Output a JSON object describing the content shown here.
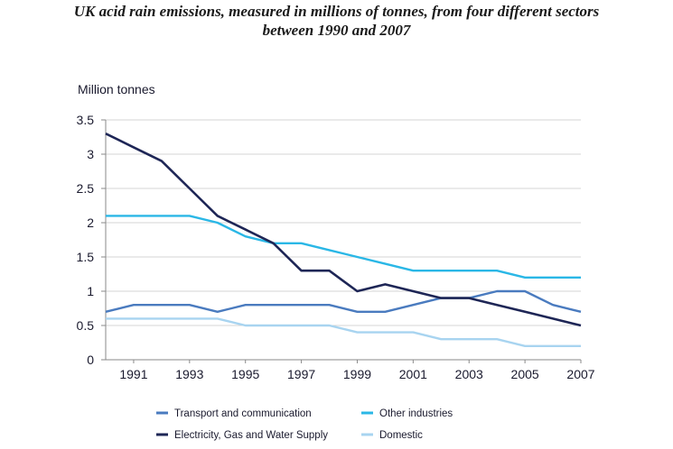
{
  "title": {
    "line1": "UK acid rain emissions, measured in millions of tonnes, from four different sectors",
    "line2": "between 1990 and 2007"
  },
  "chart_data": {
    "type": "line",
    "title": "UK acid rain emissions, measured in millions of tonnes, from four different sectors between 1990 and 2007",
    "ylabel": "Million tonnes",
    "xlabel": "",
    "ylim": [
      0,
      3.5
    ],
    "xlim": [
      1990,
      2007
    ],
    "x_ticks": [
      "1991",
      "1993",
      "1995",
      "1997",
      "1999",
      "2001",
      "2003",
      "2005",
      "2007"
    ],
    "y_ticks": [
      "0",
      "0.5",
      "1",
      "1.5",
      "2",
      "2.5",
      "3",
      "3.5"
    ],
    "grid": "horizontal",
    "legend_position": "bottom",
    "x": [
      1990,
      1991,
      1992,
      1993,
      1994,
      1995,
      1996,
      1997,
      1998,
      1999,
      2000,
      2001,
      2002,
      2003,
      2004,
      2005,
      2006,
      2007
    ],
    "series": [
      {
        "name": "Transport and communication",
        "color": "#4a7bbf",
        "values": [
          0.7,
          0.8,
          0.8,
          0.8,
          0.7,
          0.8,
          0.8,
          0.8,
          0.8,
          0.7,
          0.7,
          0.8,
          0.9,
          0.9,
          1.0,
          1.0,
          0.8,
          0.7
        ]
      },
      {
        "name": "Other industries",
        "color": "#2ab7e6",
        "values": [
          2.1,
          2.1,
          2.1,
          2.1,
          2.0,
          1.8,
          1.7,
          1.7,
          1.6,
          1.5,
          1.4,
          1.3,
          1.3,
          1.3,
          1.3,
          1.2,
          1.2,
          1.2
        ]
      },
      {
        "name": "Electricity, Gas and Water Supply",
        "color": "#1e2656",
        "values": [
          3.3,
          3.1,
          2.9,
          2.5,
          2.1,
          1.9,
          1.7,
          1.3,
          1.3,
          1.0,
          1.1,
          1.0,
          0.9,
          0.9,
          0.8,
          0.7,
          0.6,
          0.5
        ]
      },
      {
        "name": "Domestic",
        "color": "#a8d4f0",
        "values": [
          0.6,
          0.6,
          0.6,
          0.6,
          0.6,
          0.5,
          0.5,
          0.5,
          0.5,
          0.4,
          0.4,
          0.4,
          0.3,
          0.3,
          0.3,
          0.2,
          0.2,
          0.2
        ]
      }
    ]
  }
}
